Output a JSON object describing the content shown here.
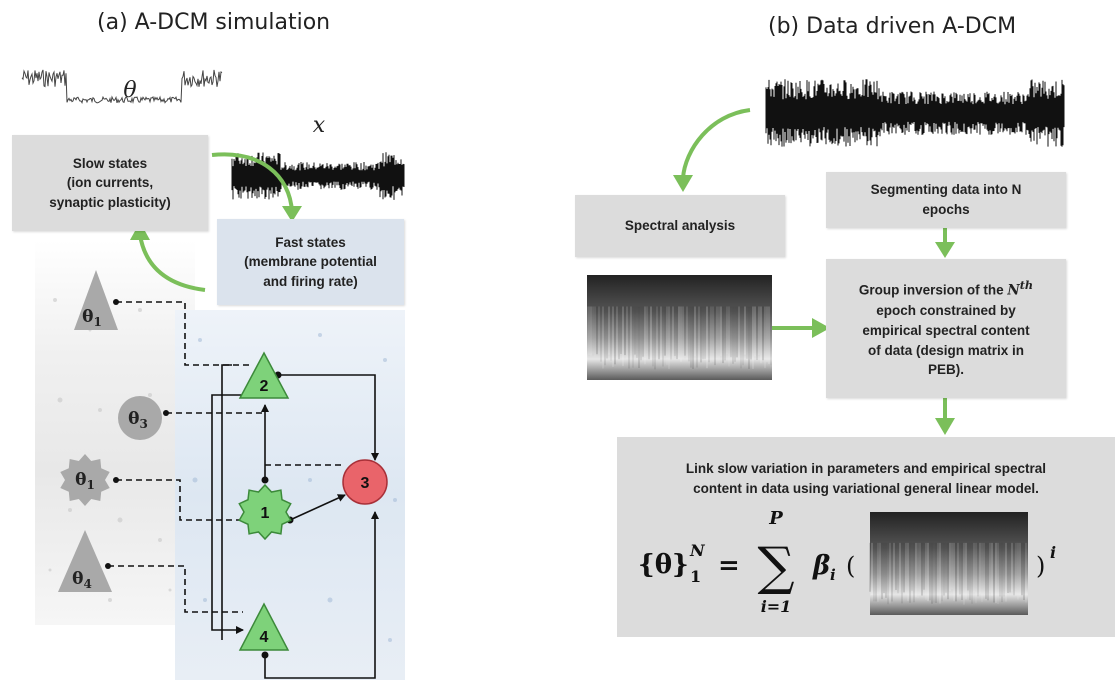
{
  "panel_a": {
    "title": "(a) A-DCM simulation",
    "theta_label": "θ",
    "x_label": "x",
    "slow_states": "Slow states\n(ion currents,\nsynaptic plasticity)",
    "fast_states": "Fast states\n(membrane potential\nand firing rate)",
    "param_nodes": [
      {
        "base": "θ",
        "sub": "1",
        "shape": "triangle"
      },
      {
        "base": "θ",
        "sub": "3",
        "shape": "circle"
      },
      {
        "base": "θ",
        "sub": "1",
        "shape": "star"
      },
      {
        "base": "θ",
        "sub": "4",
        "shape": "triangle"
      }
    ],
    "neural_nodes": [
      {
        "label": "2",
        "shape": "triangle",
        "color": "#7ed27a"
      },
      {
        "label": "1",
        "shape": "star",
        "color": "#7ed27a"
      },
      {
        "label": "3",
        "shape": "circle",
        "color": "#e9646a"
      },
      {
        "label": "4",
        "shape": "triangle",
        "color": "#7ed27a"
      }
    ]
  },
  "panel_b": {
    "title": "(b) Data driven A-DCM",
    "spectral_analysis": "Spectral analysis",
    "segmenting": "Segmenting data into N\nepochs",
    "group_inversion_prefix": "Group inversion of the ",
    "group_inversion_N": "N",
    "group_inversion_sup": "th",
    "group_inversion_rest": "epoch constrained by\nempirical spectral content\nof data (design matrix in\nPEB).",
    "link_text": "Link slow variation in parameters and empirical spectral\ncontent in data using variational general linear model.",
    "formula": {
      "lhs_open": "{θ}",
      "lhs_sup": "N",
      "lhs_sub": "1",
      "equals": "=",
      "sum_top": "P",
      "sum_bottom": "i=1",
      "beta": "β",
      "beta_sub": "i",
      "open_paren": "(",
      "close_paren": ")",
      "exponent": "i"
    }
  },
  "colors": {
    "green_arrow": "#7bbf5a",
    "node_green": "#7ed27a",
    "node_red": "#e9646a",
    "box_gray": "#dcdcdc",
    "box_blue": "#dbe3ed",
    "param_gray": "#a9a9a9"
  }
}
